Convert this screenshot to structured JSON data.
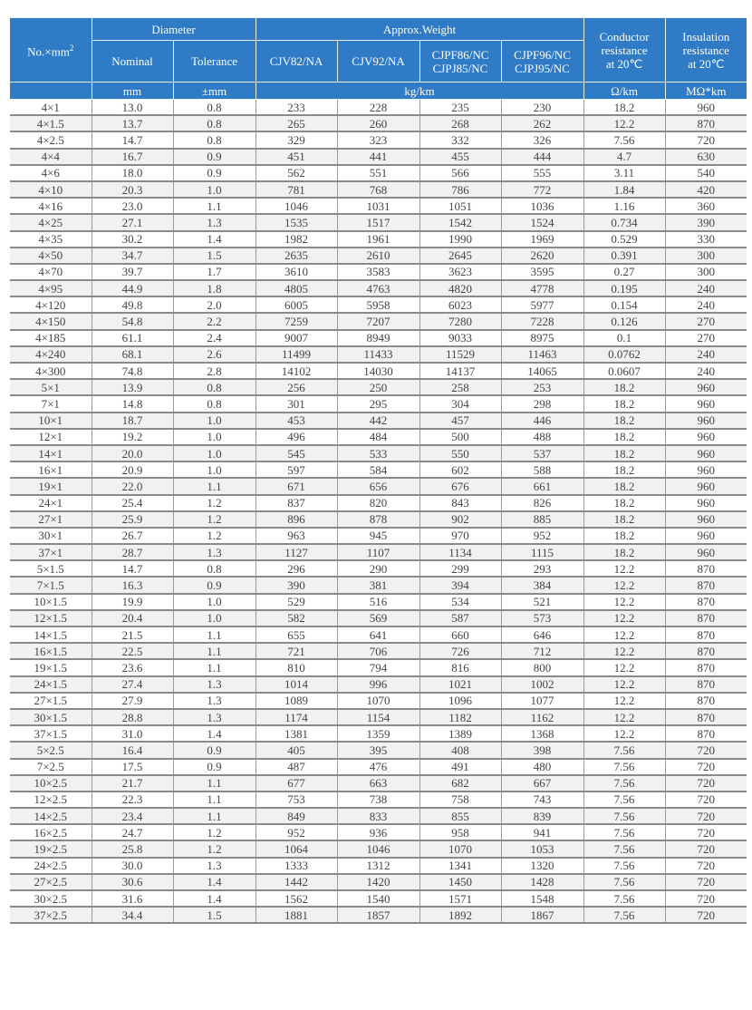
{
  "header": {
    "size": "No.×mm",
    "size_sup": "2",
    "diameter": "Diameter",
    "nominal": "Nominal",
    "tolerance": "Tolerance",
    "weight": "Approx.Weight",
    "w1": "CJV82/NA",
    "w2": "CJV92/NA",
    "w3a": "CJPF86/NC",
    "w3b": "CJPJ85/NC",
    "w4a": "CJPF96/NC",
    "w4b": "CJPJ95/NC",
    "cond_a": "Conductor",
    "cond_b": "resistance",
    "cond_c": "at 20℃",
    "ins_a": "Insulation",
    "ins_b": "resistance",
    "ins_c": "at 20℃",
    "unit_nominal": "mm",
    "unit_tolerance": "±mm",
    "unit_weight": "kg/km",
    "unit_cond": "Ω/km",
    "unit_ins": "MΩ*km"
  },
  "colors": {
    "header_bg": "#2f7bc6",
    "header_text": "#ffffff",
    "row_alt": "#f1f1f1"
  },
  "rows": [
    [
      "4×1",
      "13.0",
      "0.8",
      "233",
      "228",
      "235",
      "230",
      "18.2",
      "960"
    ],
    [
      "4×1.5",
      "13.7",
      "0.8",
      "265",
      "260",
      "268",
      "262",
      "12.2",
      "870"
    ],
    [
      "4×2.5",
      "14.7",
      "0.8",
      "329",
      "323",
      "332",
      "326",
      "7.56",
      "720"
    ],
    [
      "4×4",
      "16.7",
      "0.9",
      "451",
      "441",
      "455",
      "444",
      "4.7",
      "630"
    ],
    [
      "4×6",
      "18.0",
      "0.9",
      "562",
      "551",
      "566",
      "555",
      "3.11",
      "540"
    ],
    [
      "4×10",
      "20.3",
      "1.0",
      "781",
      "768",
      "786",
      "772",
      "1.84",
      "420"
    ],
    [
      "4×16",
      "23.0",
      "1.1",
      "1046",
      "1031",
      "1051",
      "1036",
      "1.16",
      "360"
    ],
    [
      "4×25",
      "27.1",
      "1.3",
      "1535",
      "1517",
      "1542",
      "1524",
      "0.734",
      "390"
    ],
    [
      "4×35",
      "30.2",
      "1.4",
      "1982",
      "1961",
      "1990",
      "1969",
      "0.529",
      "330"
    ],
    [
      "4×50",
      "34.7",
      "1.5",
      "2635",
      "2610",
      "2645",
      "2620",
      "0.391",
      "300"
    ],
    [
      "4×70",
      "39.7",
      "1.7",
      "3610",
      "3583",
      "3623",
      "3595",
      "0.27",
      "300"
    ],
    [
      "4×95",
      "44.9",
      "1.8",
      "4805",
      "4763",
      "4820",
      "4778",
      "0.195",
      "240"
    ],
    [
      "4×120",
      "49.8",
      "2.0",
      "6005",
      "5958",
      "6023",
      "5977",
      "0.154",
      "240"
    ],
    [
      "4×150",
      "54.8",
      "2.2",
      "7259",
      "7207",
      "7280",
      "7228",
      "0.126",
      "270"
    ],
    [
      "4×185",
      "61.1",
      "2.4",
      "9007",
      "8949",
      "9033",
      "8975",
      "0.1",
      "270"
    ],
    [
      "4×240",
      "68.1",
      "2.6",
      "11499",
      "11433",
      "11529",
      "11463",
      "0.0762",
      "240"
    ],
    [
      "4×300",
      "74.8",
      "2.8",
      "14102",
      "14030",
      "14137",
      "14065",
      "0.0607",
      "240"
    ],
    [
      "5×1",
      "13.9",
      "0.8",
      "256",
      "250",
      "258",
      "253",
      "18.2",
      "960"
    ],
    [
      "7×1",
      "14.8",
      "0.8",
      "301",
      "295",
      "304",
      "298",
      "18.2",
      "960"
    ],
    [
      "10×1",
      "18.7",
      "1.0",
      "453",
      "442",
      "457",
      "446",
      "18.2",
      "960"
    ],
    [
      "12×1",
      "19.2",
      "1.0",
      "496",
      "484",
      "500",
      "488",
      "18.2",
      "960"
    ],
    [
      "14×1",
      "20.0",
      "1.0",
      "545",
      "533",
      "550",
      "537",
      "18.2",
      "960"
    ],
    [
      "16×1",
      "20.9",
      "1.0",
      "597",
      "584",
      "602",
      "588",
      "18.2",
      "960"
    ],
    [
      "19×1",
      "22.0",
      "1.1",
      "671",
      "656",
      "676",
      "661",
      "18.2",
      "960"
    ],
    [
      "24×1",
      "25.4",
      "1.2",
      "837",
      "820",
      "843",
      "826",
      "18.2",
      "960"
    ],
    [
      "27×1",
      "25.9",
      "1.2",
      "896",
      "878",
      "902",
      "885",
      "18.2",
      "960"
    ],
    [
      "30×1",
      "26.7",
      "1.2",
      "963",
      "945",
      "970",
      "952",
      "18.2",
      "960"
    ],
    [
      "37×1",
      "28.7",
      "1.3",
      "1127",
      "1107",
      "1134",
      "1115",
      "18.2",
      "960"
    ],
    [
      "5×1.5",
      "14.7",
      "0.8",
      "296",
      "290",
      "299",
      "293",
      "12.2",
      "870"
    ],
    [
      "7×1.5",
      "16.3",
      "0.9",
      "390",
      "381",
      "394",
      "384",
      "12.2",
      "870"
    ],
    [
      "10×1.5",
      "19.9",
      "1.0",
      "529",
      "516",
      "534",
      "521",
      "12.2",
      "870"
    ],
    [
      "12×1.5",
      "20.4",
      "1.0",
      "582",
      "569",
      "587",
      "573",
      "12.2",
      "870"
    ],
    [
      "14×1.5",
      "21.5",
      "1.1",
      "655",
      "641",
      "660",
      "646",
      "12.2",
      "870"
    ],
    [
      "16×1.5",
      "22.5",
      "1.1",
      "721",
      "706",
      "726",
      "712",
      "12.2",
      "870"
    ],
    [
      "19×1.5",
      "23.6",
      "1.1",
      "810",
      "794",
      "816",
      "800",
      "12.2",
      "870"
    ],
    [
      "24×1.5",
      "27.4",
      "1.3",
      "1014",
      "996",
      "1021",
      "1002",
      "12.2",
      "870"
    ],
    [
      "27×1.5",
      "27.9",
      "1.3",
      "1089",
      "1070",
      "1096",
      "1077",
      "12.2",
      "870"
    ],
    [
      "30×1.5",
      "28.8",
      "1.3",
      "1174",
      "1154",
      "1182",
      "1162",
      "12.2",
      "870"
    ],
    [
      "37×1.5",
      "31.0",
      "1.4",
      "1381",
      "1359",
      "1389",
      "1368",
      "12.2",
      "870"
    ],
    [
      "5×2.5",
      "16.4",
      "0.9",
      "405",
      "395",
      "408",
      "398",
      "7.56",
      "720"
    ],
    [
      "7×2.5",
      "17.5",
      "0.9",
      "487",
      "476",
      "491",
      "480",
      "7.56",
      "720"
    ],
    [
      "10×2.5",
      "21.7",
      "1.1",
      "677",
      "663",
      "682",
      "667",
      "7.56",
      "720"
    ],
    [
      "12×2.5",
      "22.3",
      "1.1",
      "753",
      "738",
      "758",
      "743",
      "7.56",
      "720"
    ],
    [
      "14×2.5",
      "23.4",
      "1.1",
      "849",
      "833",
      "855",
      "839",
      "7.56",
      "720"
    ],
    [
      "16×2.5",
      "24.7",
      "1.2",
      "952",
      "936",
      "958",
      "941",
      "7.56",
      "720"
    ],
    [
      "19×2.5",
      "25.8",
      "1.2",
      "1064",
      "1046",
      "1070",
      "1053",
      "7.56",
      "720"
    ],
    [
      "24×2.5",
      "30.0",
      "1.3",
      "1333",
      "1312",
      "1341",
      "1320",
      "7.56",
      "720"
    ],
    [
      "27×2.5",
      "30.6",
      "1.4",
      "1442",
      "1420",
      "1450",
      "1428",
      "7.56",
      "720"
    ],
    [
      "30×2.5",
      "31.6",
      "1.4",
      "1562",
      "1540",
      "1571",
      "1548",
      "7.56",
      "720"
    ],
    [
      "37×2.5",
      "34.4",
      "1.5",
      "1881",
      "1857",
      "1892",
      "1867",
      "7.56",
      "720"
    ]
  ]
}
